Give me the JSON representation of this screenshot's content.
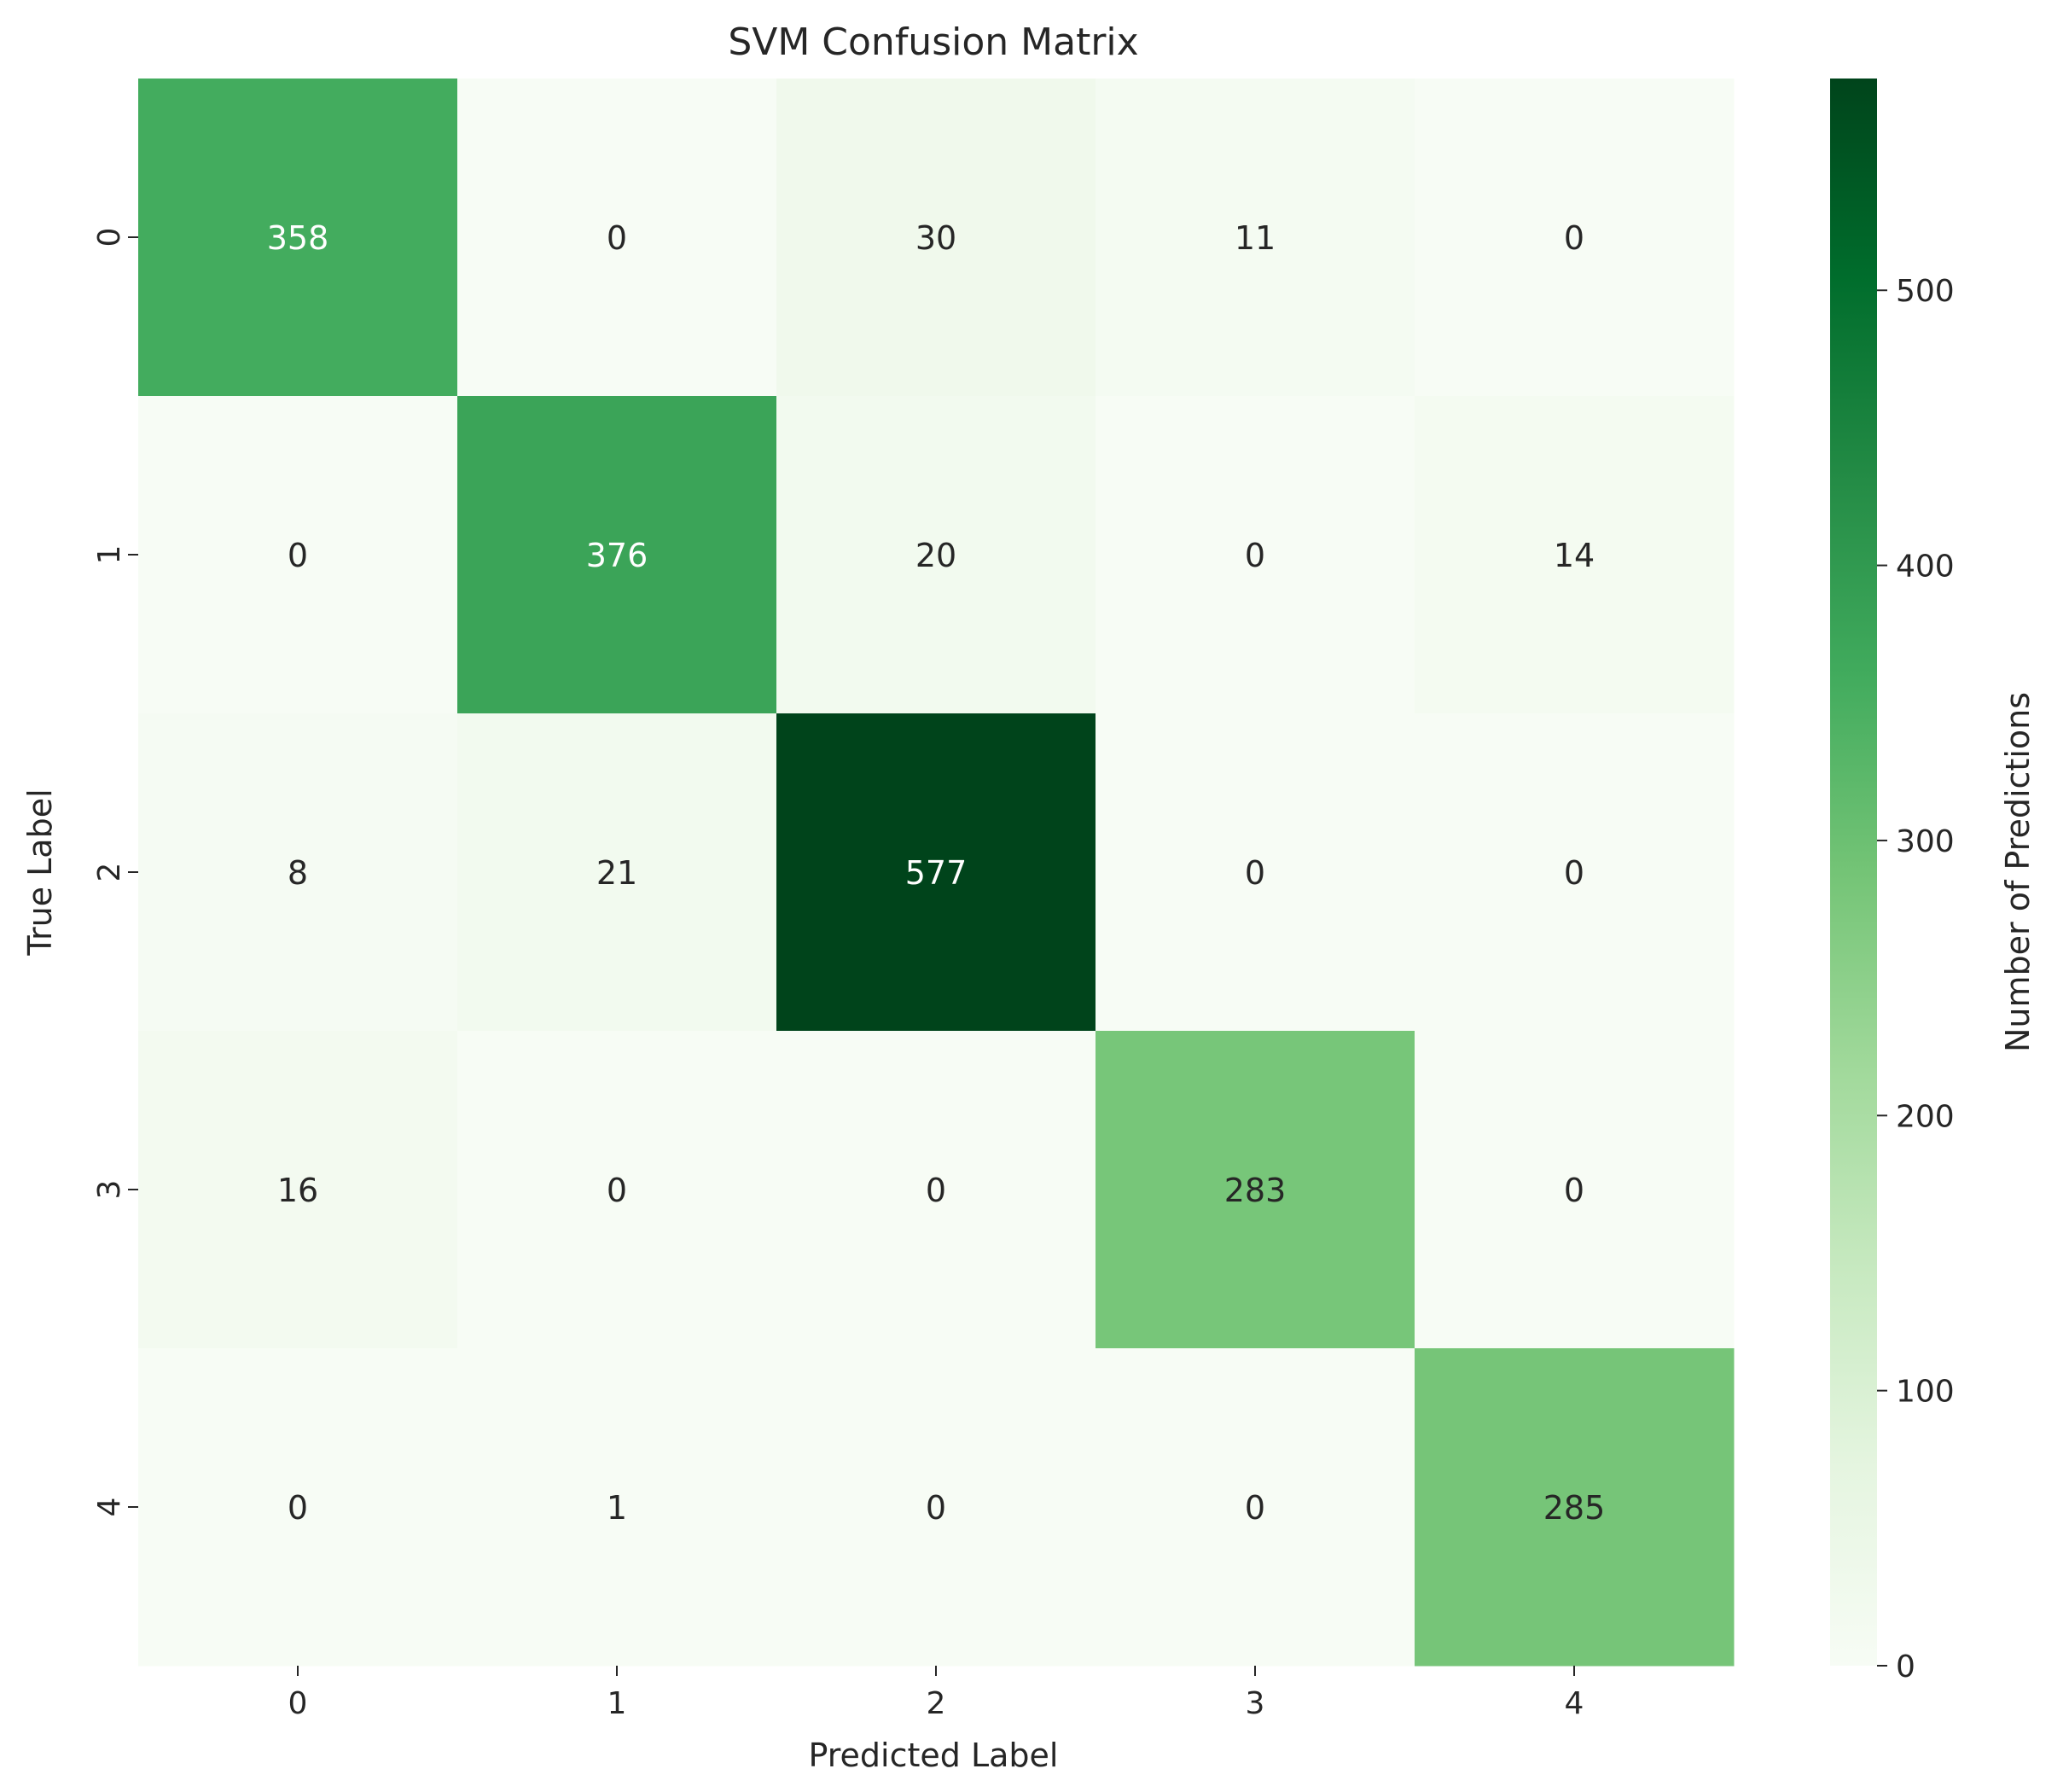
{
  "chart_data": {
    "type": "heatmap",
    "title": "SVM Confusion Matrix",
    "xlabel": "Predicted Label",
    "ylabel": "True Label",
    "x_categories": [
      "0",
      "1",
      "2",
      "3",
      "4"
    ],
    "y_categories": [
      "0",
      "1",
      "2",
      "3",
      "4"
    ],
    "matrix": [
      [
        358,
        0,
        30,
        11,
        0
      ],
      [
        0,
        376,
        20,
        0,
        14
      ],
      [
        8,
        21,
        577,
        0,
        0
      ],
      [
        16,
        0,
        0,
        283,
        0
      ],
      [
        0,
        1,
        0,
        0,
        285
      ]
    ],
    "colormap": "Greens",
    "value_range": [
      0,
      577
    ],
    "colorbar": {
      "label": "Number of Predictions",
      "ticks": [
        0,
        100,
        200,
        300,
        400,
        500
      ]
    },
    "annotation_colors": {
      "dark": "#262626",
      "light": "#ffffff"
    }
  }
}
